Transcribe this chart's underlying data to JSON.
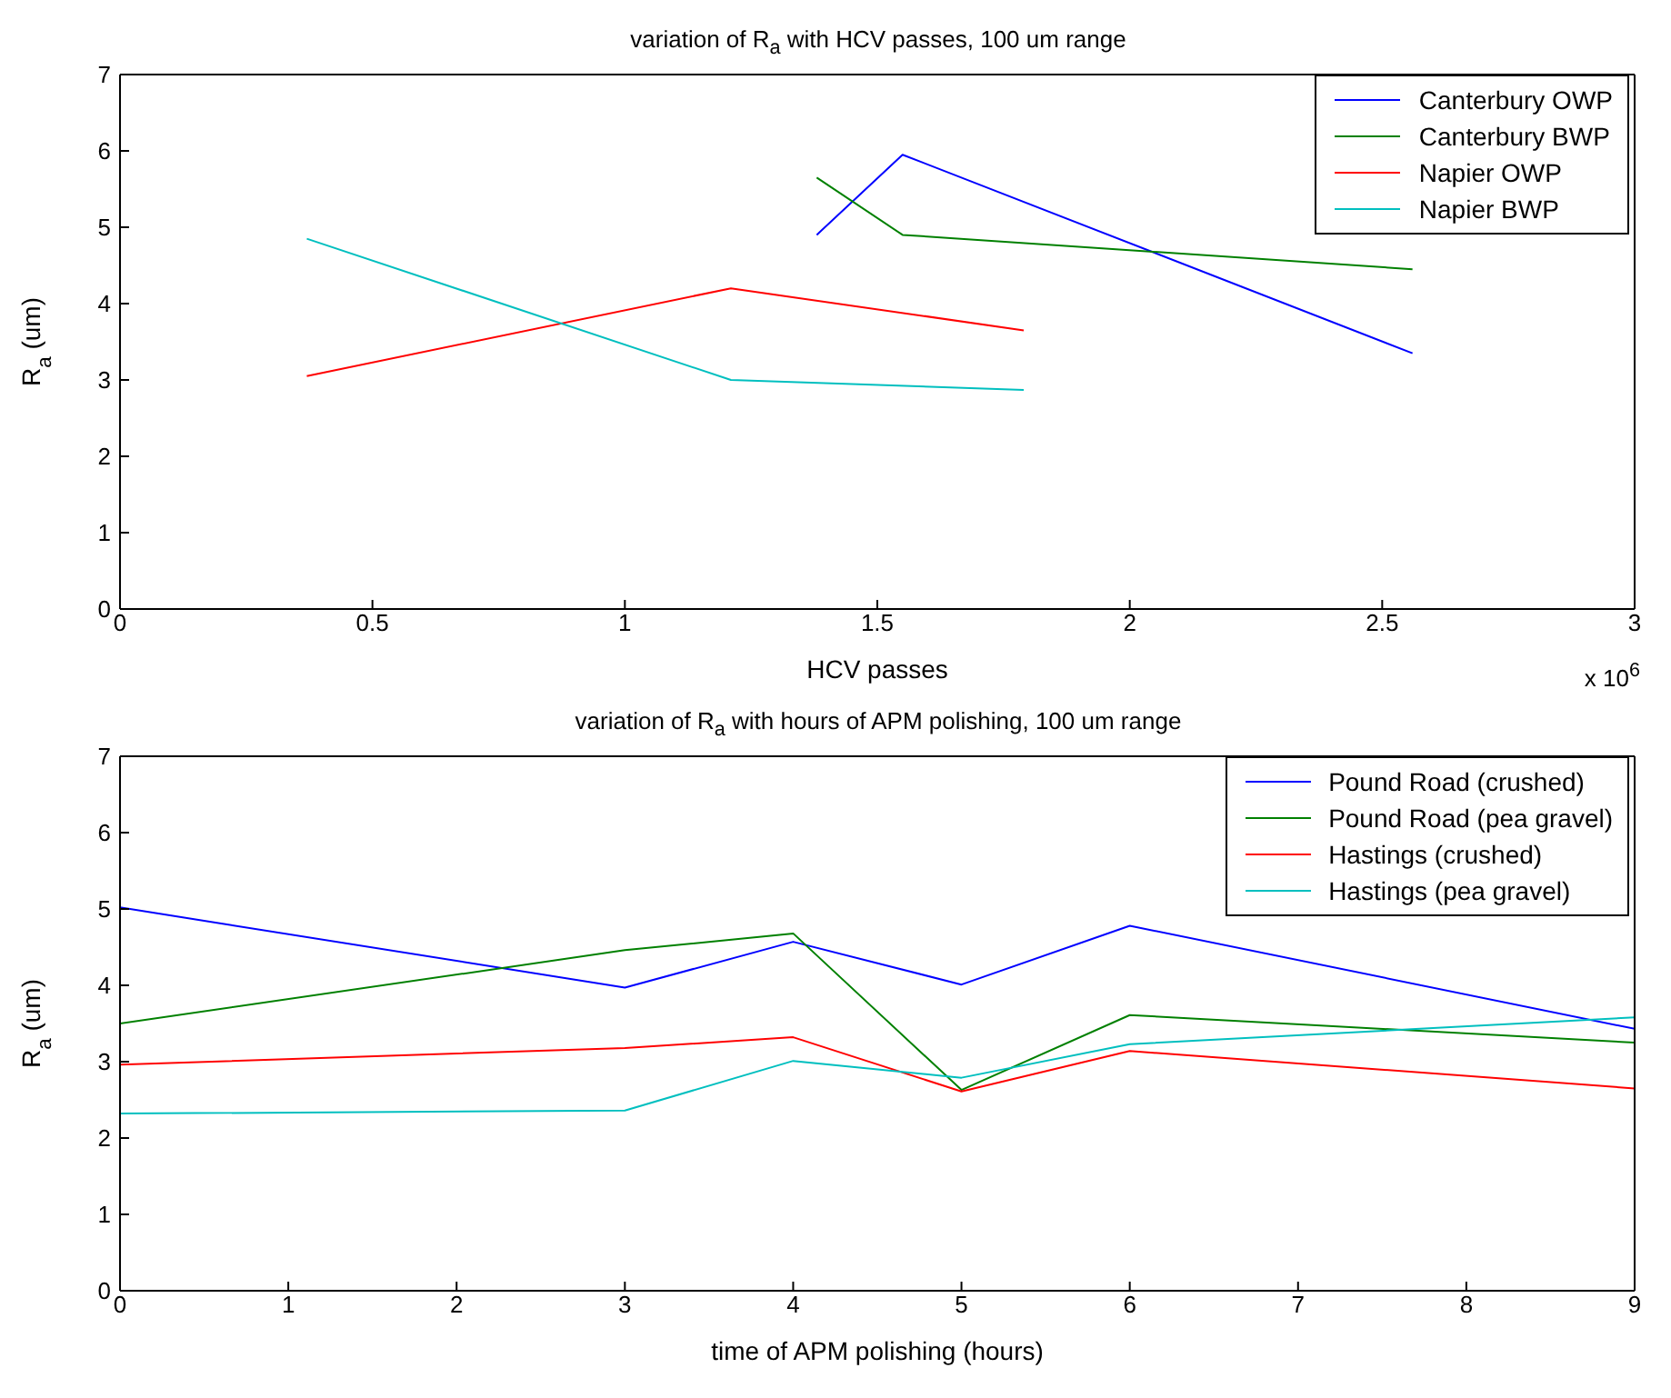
{
  "chart_data": [
    {
      "type": "line",
      "title": "variation of R$_{a}$ with HCV passes, 100 um range",
      "xlabel": "HCV passes",
      "ylabel": "R$_{a}$ (um)",
      "xlim": [
        0,
        3
      ],
      "xticks": [
        0,
        0.5,
        1,
        1.5,
        2,
        2.5,
        3
      ],
      "ylim": [
        0,
        7
      ],
      "yticks": [
        0,
        1,
        2,
        3,
        4,
        5,
        6,
        7
      ],
      "annotations": [
        "x 10$^{6}$"
      ],
      "grid": false,
      "legend": "top right",
      "marker": "none",
      "line_style": "solid",
      "series": [
        {
          "name": "Canterbury OWP",
          "color": "#0000ff",
          "x": [
            1.38,
            1.55,
            2.56
          ],
          "values": [
            4.9,
            5.95,
            3.35
          ]
        },
        {
          "name": "Canterbury BWP",
          "color": "#008000",
          "x": [
            1.38,
            1.55,
            2.56
          ],
          "values": [
            5.65,
            4.9,
            4.45
          ]
        },
        {
          "name": "Napier OWP",
          "color": "#ff0000",
          "x": [
            0.37,
            1.21,
            1.79
          ],
          "values": [
            3.05,
            4.2,
            3.65
          ]
        },
        {
          "name": "Napier BWP",
          "color": "#00bfbf",
          "x": [
            0.37,
            1.21,
            1.79
          ],
          "values": [
            4.85,
            3.0,
            2.87
          ]
        }
      ]
    },
    {
      "type": "line",
      "title": "variation of R$_{a}$ with hours of APM polishing, 100 um range",
      "xlabel": "time of APM polishing (hours)",
      "ylabel": "R$_{a}$ (um)",
      "xlim": [
        0,
        9
      ],
      "xticks": [
        0,
        1,
        2,
        3,
        4,
        5,
        6,
        7,
        8,
        9
      ],
      "ylim": [
        0,
        7
      ],
      "yticks": [
        0,
        1,
        2,
        3,
        4,
        5,
        6,
        7
      ],
      "grid": false,
      "legend": "top right",
      "marker": "none",
      "line_style": "solid",
      "x": [
        0,
        3,
        4,
        5,
        6,
        9
      ],
      "series": [
        {
          "name": "Pound Road (crushed)",
          "color": "#0000ff",
          "values": [
            5.02,
            3.97,
            4.57,
            4.01,
            4.78,
            3.43
          ]
        },
        {
          "name": "Pound Road (pea gravel)",
          "color": "#008000",
          "values": [
            3.5,
            4.46,
            4.68,
            2.63,
            3.61,
            3.25
          ]
        },
        {
          "name": "Hastings (crushed)",
          "color": "#ff0000",
          "values": [
            2.96,
            3.18,
            3.32,
            2.61,
            3.14,
            2.65
          ]
        },
        {
          "name": "Hastings (pea gravel)",
          "color": "#00bfbf",
          "values": [
            2.32,
            2.36,
            3.01,
            2.79,
            3.23,
            3.58
          ]
        }
      ]
    }
  ]
}
